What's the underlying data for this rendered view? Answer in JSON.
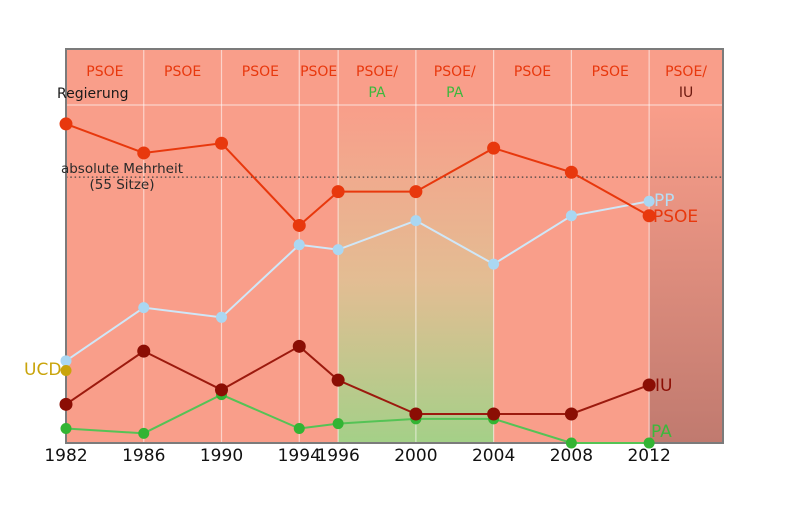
{
  "colors": {
    "background": "#ffffff",
    "plot_fill": "#f99e8a",
    "band_pa_mid": "#e3bd93",
    "band_pa_bottom": "#a4d088",
    "band_iu_bottom": "#c07a6f",
    "gridline": "rgba(255,255,255,0.55)",
    "plot_border": "#7b7b7b",
    "majority_line": "#404040",
    "tick_text": "#111111"
  },
  "chart_data": {
    "type": "line",
    "x": [
      1982,
      1986,
      1990,
      1994,
      1996,
      2000,
      2004,
      2008,
      2012
    ],
    "x_tick_labels": [
      "1982",
      "1986",
      "1990",
      "1994",
      "1996",
      "2000",
      "2004",
      "2008",
      "2012"
    ],
    "xlim": [
      1982,
      2015.8
    ],
    "ylim": [
      0,
      81.5
    ],
    "grid": "vertical-per-election-year",
    "series": [
      {
        "name": "PSOE",
        "color": "#e8380d",
        "line_color": "#e8380d",
        "values": [
          66,
          60,
          62,
          45,
          52,
          52,
          61,
          56,
          47
        ]
      },
      {
        "name": "PP",
        "color": "#aad7f2",
        "line_color": "#cfe7f8",
        "values": [
          17,
          28,
          26,
          41,
          40,
          46,
          37,
          47,
          50
        ]
      },
      {
        "name": "IU",
        "color": "#8b0e04",
        "line_color": "#9c1a0e",
        "values": [
          8,
          19,
          11,
          20,
          13,
          6,
          6,
          6,
          12
        ]
      },
      {
        "name": "PA",
        "color": "#33b433",
        "line_color": "#55c355",
        "values": [
          3,
          2,
          10,
          3,
          4,
          5,
          5,
          0,
          0
        ]
      },
      {
        "name": "UCD",
        "color": "#c9a40b",
        "line_color": "#c9a40b",
        "values": [
          15,
          null,
          null,
          null,
          null,
          null,
          null,
          null,
          null
        ]
      }
    ],
    "majority_line": {
      "value": 55,
      "label1": "absolute Mehrheit",
      "label2": "(55 Sitze)"
    },
    "regierung_label": "Regierung",
    "government_bands": [
      {
        "from": 1982,
        "to": 1986,
        "line1": "PSOE",
        "line2": ""
      },
      {
        "from": 1986,
        "to": 1990,
        "line1": "PSOE",
        "line2": ""
      },
      {
        "from": 1990,
        "to": 1994,
        "line1": "PSOE",
        "line2": ""
      },
      {
        "from": 1994,
        "to": 1996,
        "line1": "PSOE",
        "line2": ""
      },
      {
        "from": 1996,
        "to": 2000,
        "line1": "PSOE/",
        "line2": "PA"
      },
      {
        "from": 2000,
        "to": 2004,
        "line1": "PSOE/",
        "line2": "PA"
      },
      {
        "from": 2004,
        "to": 2008,
        "line1": "PSOE",
        "line2": ""
      },
      {
        "from": 2008,
        "to": 2012,
        "line1": "PSOE",
        "line2": ""
      },
      {
        "from": 2012,
        "to": 2015.8,
        "line1": "PSOE/",
        "line2": "IU"
      }
    ],
    "end_labels": {
      "pp": "PP",
      "psoe": "PSOE",
      "iu": "IU",
      "pa": "PA",
      "ucd": "UCD"
    },
    "legend_position": "right-of-last-points"
  }
}
